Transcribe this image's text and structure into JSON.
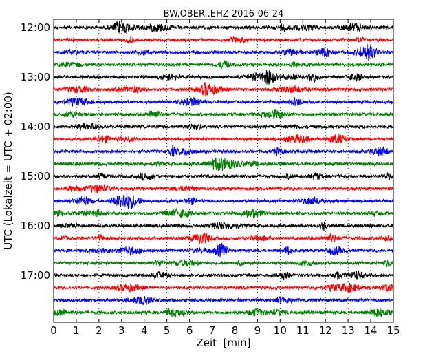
{
  "chart_data": {
    "type": "line",
    "title": "BW.OBER..EHZ 2016-06-24",
    "xlabel": "Zeit  [min]",
    "ylabel": "UTC (Lokalzeit = UTC + 02:00)",
    "xlim": [
      0,
      15
    ],
    "x_ticks": [
      "0",
      "1",
      "2",
      "3",
      "4",
      "5",
      "6",
      "7",
      "8",
      "9",
      "10",
      "11",
      "12",
      "13",
      "14",
      "15"
    ],
    "y_ticks": [
      "12:00",
      "13:00",
      "14:00",
      "15:00",
      "16:00",
      "17:00"
    ],
    "grid": "vertical dotted",
    "trace_colors": [
      "#000000",
      "#ff0000",
      "#0000ff",
      "#008000"
    ],
    "traces": [
      "12:00",
      "12:15",
      "12:30",
      "12:45",
      "13:00",
      "13:15",
      "13:30",
      "13:45",
      "14:00",
      "14:15",
      "14:30",
      "14:45",
      "15:00",
      "15:15",
      "15:30",
      "15:45",
      "16:00",
      "16:15",
      "16:30",
      "16:45",
      "17:00",
      "17:15",
      "17:30",
      "17:45"
    ]
  }
}
